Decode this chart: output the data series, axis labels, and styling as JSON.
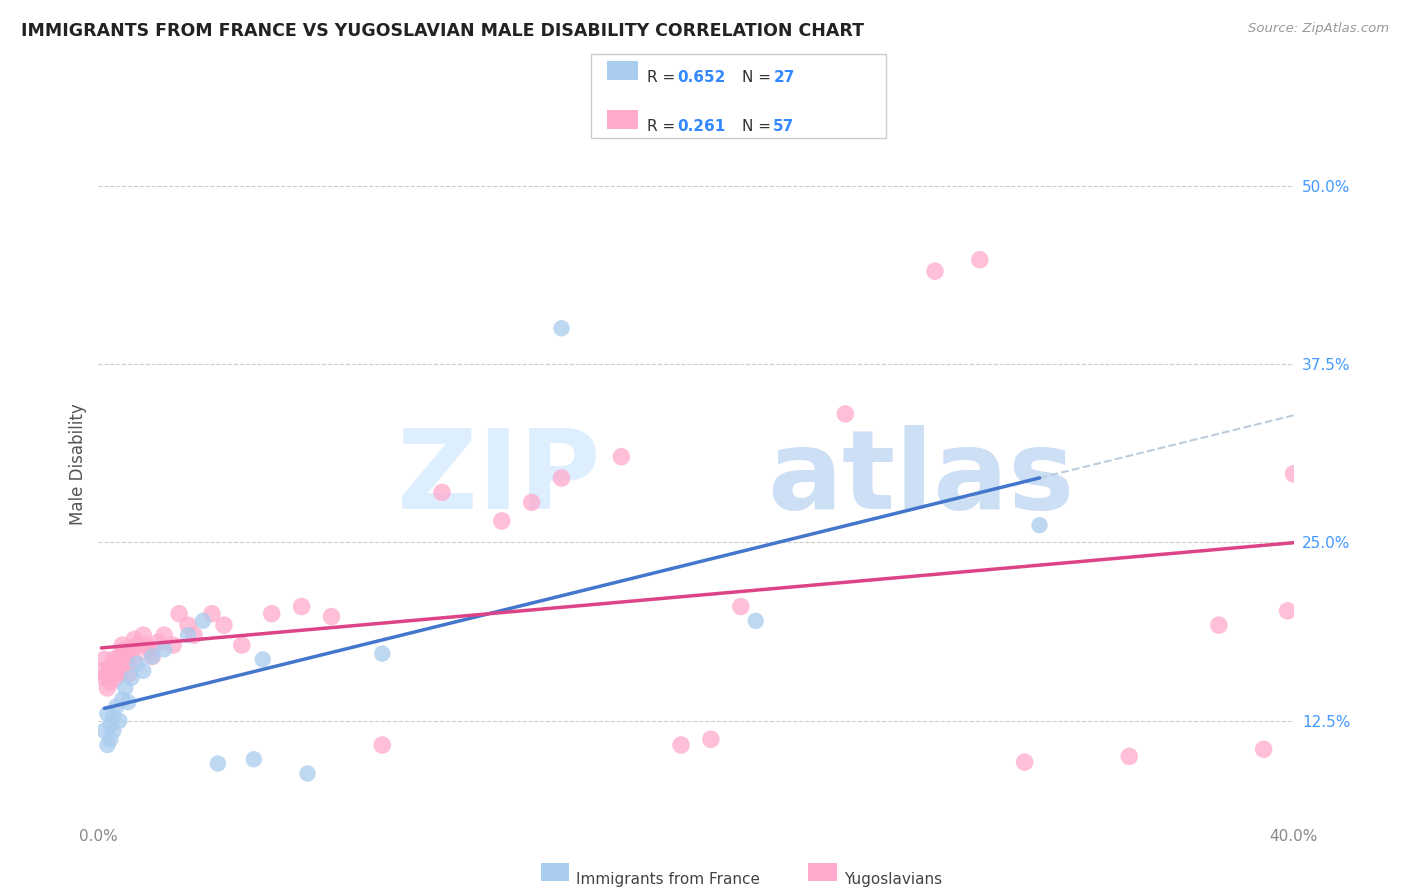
{
  "title": "IMMIGRANTS FROM FRANCE VS YUGOSLAVIAN MALE DISABILITY CORRELATION CHART",
  "source": "Source: ZipAtlas.com",
  "ylabel": "Male Disability",
  "legend_label1": "Immigrants from France",
  "legend_label2": "Yugoslavians",
  "R1": 0.652,
  "N1": 27,
  "R2": 0.261,
  "N2": 57,
  "color_blue": "#aaccee",
  "color_pink": "#ffaacc",
  "line_blue": "#4477cc",
  "line_pink": "#dd4488",
  "line_dash": "#bbccdd",
  "xlim": [
    0.0,
    0.4
  ],
  "ylim": [
    0.055,
    0.555
  ],
  "yticks": [
    0.125,
    0.25,
    0.375,
    0.5
  ],
  "ytick_labels": [
    "12.5%",
    "25.0%",
    "37.5%",
    "50.0%"
  ],
  "grid_color": "#cccccc",
  "title_color": "#222222",
  "source_color": "#999999",
  "ylabel_color": "#555555",
  "tick_color": "#888888",
  "rtick_color": "#4499ff",
  "legend_text_color": "#333333",
  "legend_val_color": "#3388ff",
  "blue_x": [
    0.002,
    0.003,
    0.003,
    0.004,
    0.004,
    0.005,
    0.005,
    0.006,
    0.007,
    0.008,
    0.009,
    0.01,
    0.011,
    0.013,
    0.015,
    0.018,
    0.022,
    0.03,
    0.035,
    0.04,
    0.052,
    0.055,
    0.07,
    0.095,
    0.155,
    0.22,
    0.315
  ],
  "blue_y": [
    0.118,
    0.108,
    0.13,
    0.122,
    0.112,
    0.128,
    0.118,
    0.135,
    0.125,
    0.14,
    0.148,
    0.138,
    0.155,
    0.165,
    0.16,
    0.17,
    0.175,
    0.185,
    0.195,
    0.095,
    0.098,
    0.168,
    0.088,
    0.172,
    0.4,
    0.195,
    0.262
  ],
  "pink_x": [
    0.001,
    0.002,
    0.002,
    0.003,
    0.003,
    0.004,
    0.004,
    0.005,
    0.005,
    0.006,
    0.006,
    0.007,
    0.007,
    0.008,
    0.008,
    0.009,
    0.009,
    0.01,
    0.01,
    0.011,
    0.012,
    0.012,
    0.013,
    0.015,
    0.016,
    0.017,
    0.018,
    0.02,
    0.022,
    0.025,
    0.027,
    0.03,
    0.032,
    0.038,
    0.042,
    0.048,
    0.058,
    0.068,
    0.078,
    0.095,
    0.115,
    0.135,
    0.145,
    0.155,
    0.175,
    0.195,
    0.205,
    0.215,
    0.25,
    0.28,
    0.295,
    0.31,
    0.345,
    0.375,
    0.39,
    0.398,
    0.4
  ],
  "pink_y": [
    0.16,
    0.155,
    0.168,
    0.148,
    0.158,
    0.152,
    0.162,
    0.158,
    0.168,
    0.155,
    0.165,
    0.17,
    0.158,
    0.162,
    0.178,
    0.168,
    0.175,
    0.158,
    0.172,
    0.175,
    0.182,
    0.168,
    0.178,
    0.185,
    0.178,
    0.175,
    0.17,
    0.18,
    0.185,
    0.178,
    0.2,
    0.192,
    0.185,
    0.2,
    0.192,
    0.178,
    0.2,
    0.205,
    0.198,
    0.108,
    0.285,
    0.265,
    0.278,
    0.295,
    0.31,
    0.108,
    0.112,
    0.205,
    0.34,
    0.44,
    0.448,
    0.096,
    0.1,
    0.192,
    0.105,
    0.202,
    0.298
  ]
}
